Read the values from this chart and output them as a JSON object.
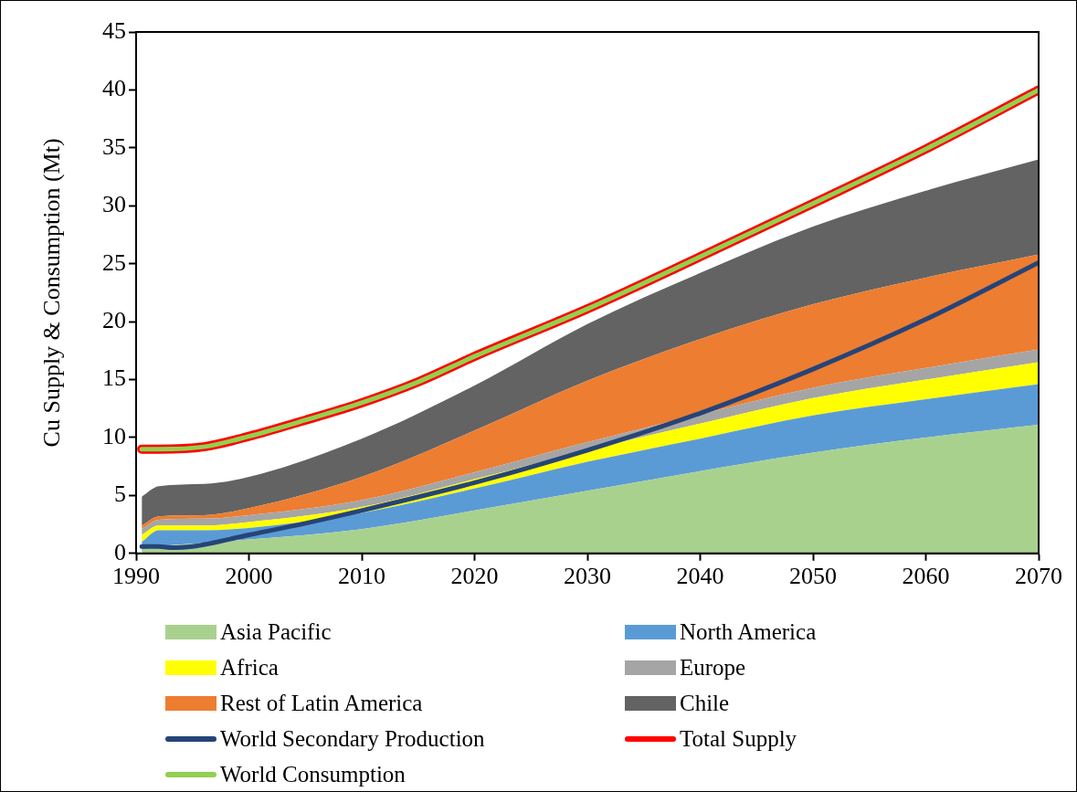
{
  "chart_data": {
    "type": "area",
    "ylabel": "Cu Supply & Consumption (Mt)",
    "stacked": true,
    "legend": "bottom",
    "grid": false,
    "marker": "none",
    "line_style": "solid",
    "x": [
      1990.5,
      1992,
      1996,
      2000,
      2010,
      2020,
      2030,
      2040,
      2050,
      2060,
      2070
    ],
    "xlim": [
      1990,
      2070
    ],
    "xticks": [
      1990,
      2000,
      2010,
      2020,
      2030,
      2040,
      2050,
      2060,
      2070
    ],
    "ylim": [
      0,
      45
    ],
    "yticks": [
      0,
      5,
      10,
      15,
      20,
      25,
      30,
      35,
      40,
      45
    ],
    "series": [
      {
        "name": "Asia Pacific",
        "color": "#a9d18e",
        "values": [
          0.3,
          0.6,
          0.9,
          1.2,
          2.1,
          3.7,
          5.4,
          7.1,
          8.7,
          10.0,
          11.1
        ]
      },
      {
        "name": "North America",
        "color": "#5b9bd5",
        "values": [
          0.7,
          1.4,
          1.1,
          1.0,
          1.4,
          1.9,
          2.5,
          2.8,
          3.2,
          3.3,
          3.5
        ]
      },
      {
        "name": "Africa",
        "color": "#ffff00",
        "values": [
          0.6,
          0.4,
          0.4,
          0.5,
          0.5,
          0.8,
          1.0,
          1.3,
          1.5,
          1.7,
          1.9
        ]
      },
      {
        "name": "Europe",
        "color": "#a5a5a5",
        "values": [
          0.5,
          0.5,
          0.6,
          0.6,
          0.6,
          0.6,
          0.7,
          0.8,
          0.9,
          1.0,
          1.1
        ]
      },
      {
        "name": "Rest of Latin America",
        "color": "#ed7d31",
        "values": [
          0.3,
          0.3,
          0.3,
          0.6,
          2.0,
          3.6,
          5.3,
          6.5,
          7.2,
          7.8,
          8.2
        ]
      },
      {
        "name": "Chile",
        "color": "#636363",
        "values": [
          2.5,
          2.6,
          2.7,
          2.7,
          3.3,
          3.9,
          4.9,
          5.7,
          6.7,
          7.5,
          8.2
        ]
      },
      {
        "name": "World Secondary Production",
        "type": "line",
        "color": "#264478",
        "x": [
          1990.5,
          1992,
          1993,
          1995,
          2000,
          2005,
          2010,
          2020,
          2030,
          2040,
          2050,
          2060,
          2070
        ],
        "values": [
          0.6,
          0.6,
          0.5,
          0.6,
          1.6,
          2.6,
          3.7,
          6.1,
          8.9,
          12.1,
          15.9,
          20.2,
          25.1
        ]
      },
      {
        "name": "Total Supply",
        "type": "line",
        "color": "#ff0000",
        "x": [
          1990.5,
          1992,
          1996,
          2000,
          2005,
          2010,
          2015,
          2020,
          2030,
          2040,
          2050,
          2060,
          2070
        ],
        "values": [
          9.0,
          9.0,
          9.2,
          10.1,
          11.5,
          13.0,
          14.8,
          17.0,
          21.1,
          25.6,
          30.2,
          34.9,
          40.0
        ]
      },
      {
        "name": "World Consumption",
        "type": "line",
        "color": "#92d050",
        "x": [
          1990.5,
          1992,
          1996,
          2000,
          2005,
          2010,
          2015,
          2020,
          2030,
          2040,
          2050,
          2060,
          2070
        ],
        "values": [
          9.0,
          9.0,
          9.2,
          10.1,
          11.5,
          13.0,
          14.8,
          17.0,
          21.1,
          25.6,
          30.2,
          34.9,
          40.0
        ]
      }
    ]
  }
}
